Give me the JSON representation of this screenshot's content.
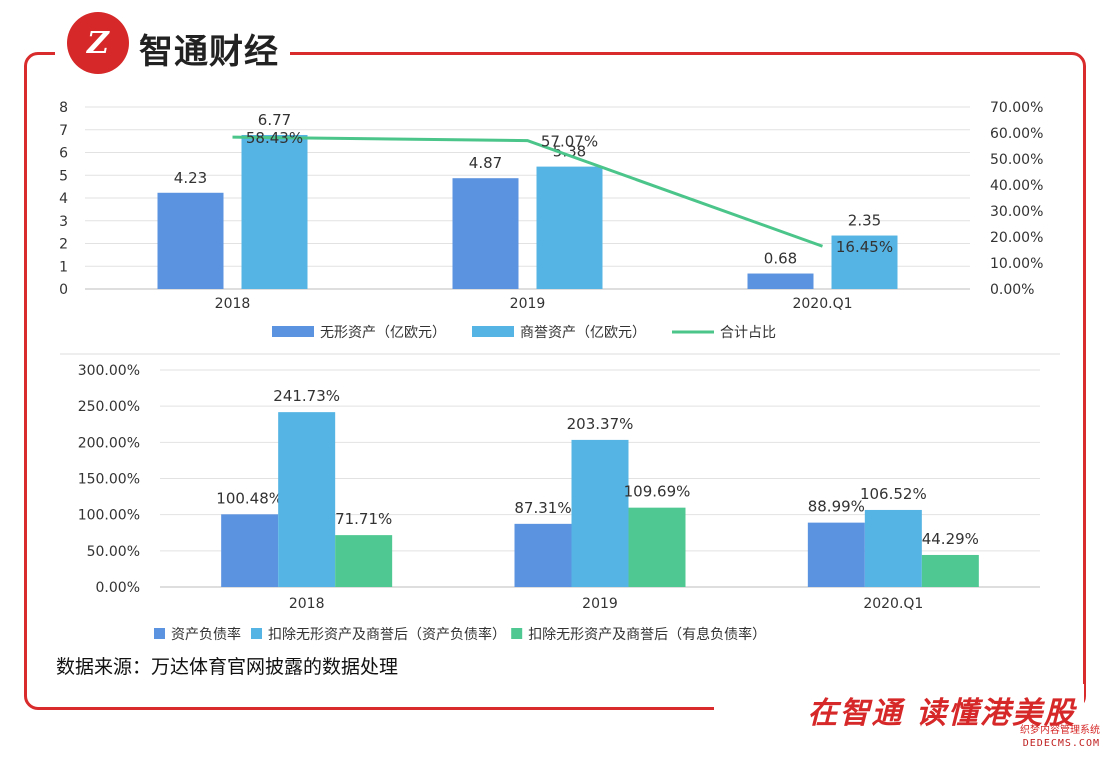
{
  "brand": {
    "logo_glyph": "Z",
    "name": "智通财经",
    "slogan": "在智通  读懂港美股"
  },
  "watermark": {
    "line1": "织梦内容管理系统",
    "line2": "DEDECMS.COM"
  },
  "source": "数据来源：万达体育官网披露的数据处理",
  "colors": {
    "frame": "#d92b2b",
    "series_a": "#5b93e0",
    "series_b": "#56b4e4",
    "series_c": "#50c892"
  },
  "chart_data": [
    {
      "type": "bar",
      "categories": [
        "2018",
        "2019",
        "2020.Q1"
      ],
      "series": [
        {
          "name": "无形资产（亿欧元）",
          "values": [
            4.23,
            4.87,
            0.68
          ],
          "labels": [
            "4.23",
            "4.87",
            "0.68"
          ],
          "color": "#5b93e0"
        },
        {
          "name": "商誉资产（亿欧元）",
          "values": [
            6.77,
            5.38,
            2.35
          ],
          "labels": [
            "6.77",
            "5.38",
            "2.35"
          ],
          "color": "#56b4e4"
        }
      ],
      "line": {
        "name": "合计占比",
        "values": [
          58.43,
          57.07,
          16.45
        ],
        "labels": [
          "58.43%",
          "57.07%",
          "16.45%"
        ],
        "color": "#4bc58a",
        "axis": "right"
      },
      "ylim": [
        0,
        8
      ],
      "yticks": [
        "0",
        "1",
        "2",
        "3",
        "4",
        "5",
        "6",
        "7",
        "8"
      ],
      "y2lim": [
        0,
        70
      ],
      "y2ticks": [
        "0.00%",
        "10.00%",
        "20.00%",
        "30.00%",
        "40.00%",
        "50.00%",
        "60.00%",
        "70.00%"
      ],
      "grid": true,
      "legend": "bottom"
    },
    {
      "type": "bar",
      "categories": [
        "2018",
        "2019",
        "2020.Q1"
      ],
      "series": [
        {
          "name": "资产负债率",
          "values": [
            100.48,
            87.31,
            88.99
          ],
          "labels": [
            "100.48%",
            "87.31%",
            "88.99%"
          ],
          "color": "#5b93e0"
        },
        {
          "name": "扣除无形资产及商誉后（资产负债率）",
          "values": [
            241.73,
            203.37,
            106.52
          ],
          "labels": [
            "241.73%",
            "203.37%",
            "106.52%"
          ],
          "color": "#56b4e4"
        },
        {
          "name": "扣除无形资产及商誉后（有息负债率）",
          "values": [
            71.71,
            109.69,
            44.29
          ],
          "labels": [
            "71.71%",
            "109.69%",
            "44.29%"
          ],
          "color": "#50c892"
        }
      ],
      "ylim": [
        0,
        300
      ],
      "yticks": [
        "0.00%",
        "50.00%",
        "100.00%",
        "150.00%",
        "200.00%",
        "250.00%",
        "300.00%"
      ],
      "grid": true,
      "legend": "bottom"
    }
  ]
}
